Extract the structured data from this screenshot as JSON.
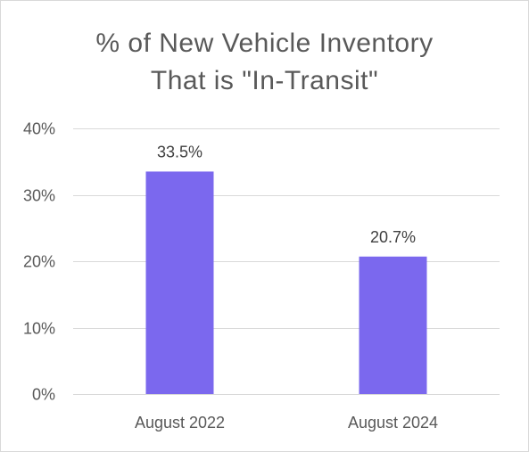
{
  "chart_data": {
    "type": "bar",
    "title_lines": [
      "% of New Vehicle Inventory",
      "That is \"In-Transit\""
    ],
    "categories": [
      "August 2022",
      "August 2024"
    ],
    "values": [
      33.5,
      20.7
    ],
    "data_labels": [
      "33.5%",
      "20.7%"
    ],
    "ylim": [
      0,
      40
    ],
    "yticks": [
      0,
      10,
      20,
      30,
      40
    ],
    "ytick_labels": [
      "0%",
      "10%",
      "20%",
      "30%",
      "40%"
    ],
    "xlabel": "",
    "ylabel": "",
    "grid": true,
    "legend": "none",
    "bar_color": "#7b68ee",
    "grid_color": "#d9d9d9"
  }
}
